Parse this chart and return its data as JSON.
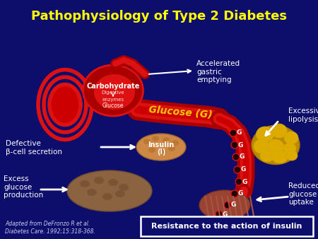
{
  "title": "Pathophysiology of Type 2 Diabetes",
  "title_color": "#FFFF00",
  "bg_color": "#0d0d6b",
  "citation": "Adapted from DeFronzo R et al.\nDiabetes Care. 1992;15:318-368.",
  "resistance_box": "Resistance to the action of insulin",
  "labels": {
    "accelerated": "Accelerated\ngastric\nemptying",
    "excessive": "Excessive\nlipolysis",
    "defective": "Defective\nβ-cell secretion",
    "excess": "Excess\nglucose\nproduction",
    "reduced": "Reduced\nglucose\nuptake",
    "carbohydrate": "Carbohydrate",
    "digestive": "Digestive",
    "enzymes": "enzymes",
    "glucose_small": "Glucose",
    "glucose_big": "Glucose (G)",
    "insulin_line1": "Insulin",
    "insulin_line2": "(I)"
  },
  "colors": {
    "red_dark": "#aa0000",
    "red_bright": "#dd1111",
    "red_mid": "#cc0000",
    "pancreas": "#cc8844",
    "liver": "#8b6340",
    "fat_yellow": "#ddaa00",
    "fat_blob": "#ccaa11",
    "muscle": "#994433",
    "white": "#ffffff",
    "glucose_label": "#ffcc00",
    "light_text": "#ccccee"
  }
}
